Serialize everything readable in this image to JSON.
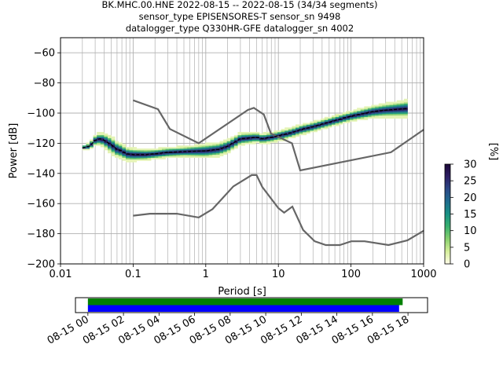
{
  "title_lines": [
    "BK.MHC.00.HNE   2022-08-15 -- 2022-08-15  (34/34 segments)",
    "sensor_type EPISENSORES-T sensor_sn 9498",
    "datalogger_type Q330HR-GFE datalogger_sn 4002"
  ],
  "chart_data": [
    {
      "type": "heatmap",
      "xlabel": "Period [s]",
      "ylabel": "Power [dB]",
      "xscale": "log",
      "xlim": [
        0.01,
        1000
      ],
      "ylim": [
        -200,
        -50
      ],
      "x_ticks": [
        {
          "v": 0.01,
          "label": "0.01"
        },
        {
          "v": 0.1,
          "label": "0.1"
        },
        {
          "v": 1,
          "label": "1"
        },
        {
          "v": 10,
          "label": "10"
        },
        {
          "v": 100,
          "label": "100"
        },
        {
          "v": 1000,
          "label": "1000"
        }
      ],
      "y_ticks": [
        {
          "v": -60,
          "label": "−60"
        },
        {
          "v": -80,
          "label": "−80"
        },
        {
          "v": -100,
          "label": "−100"
        },
        {
          "v": -120,
          "label": "−120"
        },
        {
          "v": -140,
          "label": "−140"
        },
        {
          "v": -160,
          "label": "−160"
        },
        {
          "v": -180,
          "label": "−180"
        },
        {
          "v": -200,
          "label": "−200"
        }
      ],
      "grid": true,
      "colorbar": {
        "label": "[%]",
        "range": [
          0,
          30
        ],
        "ticks": [
          {
            "v": 0,
            "label": "0"
          },
          {
            "v": 5,
            "label": "5"
          },
          {
            "v": 10,
            "label": "10"
          },
          {
            "v": 15,
            "label": "15"
          },
          {
            "v": 20,
            "label": "20"
          },
          {
            "v": 25,
            "label": "25"
          },
          {
            "v": 30,
            "label": "30"
          }
        ],
        "colors": [
          "#fffce8",
          "#d6ef9a",
          "#88d06e",
          "#38b06e",
          "#189184",
          "#1f6c8e",
          "#2b4886",
          "#2d1e64",
          "#1b0838"
        ]
      },
      "psd_median": [
        [
          0.02,
          -123
        ],
        [
          0.025,
          -122
        ],
        [
          0.03,
          -118
        ],
        [
          0.035,
          -117
        ],
        [
          0.04,
          -118
        ],
        [
          0.05,
          -121
        ],
        [
          0.06,
          -124
        ],
        [
          0.07,
          -125
        ],
        [
          0.08,
          -127
        ],
        [
          0.1,
          -127.5
        ],
        [
          0.15,
          -127.5
        ],
        [
          0.2,
          -127
        ],
        [
          0.3,
          -126
        ],
        [
          0.5,
          -125.5
        ],
        [
          1,
          -125
        ],
        [
          1.5,
          -124
        ],
        [
          2,
          -122
        ],
        [
          3,
          -117
        ],
        [
          4,
          -116.5
        ],
        [
          5,
          -116
        ],
        [
          6,
          -117
        ],
        [
          8,
          -116
        ],
        [
          10,
          -115
        ],
        [
          15,
          -113
        ],
        [
          20,
          -111
        ],
        [
          30,
          -109
        ],
        [
          50,
          -106
        ],
        [
          100,
          -102
        ],
        [
          200,
          -99
        ],
        [
          300,
          -98
        ],
        [
          600,
          -97
        ]
      ],
      "psd_spread": [
        [
          0.02,
          1
        ],
        [
          0.03,
          3
        ],
        [
          0.05,
          5
        ],
        [
          0.08,
          4
        ],
        [
          0.2,
          3
        ],
        [
          0.5,
          3
        ],
        [
          1,
          4
        ],
        [
          2,
          4
        ],
        [
          5,
          3
        ],
        [
          10,
          3
        ],
        [
          30,
          3
        ],
        [
          100,
          3
        ],
        [
          300,
          4
        ],
        [
          600,
          5
        ]
      ],
      "nhnm": [
        [
          0.1,
          -91.5
        ],
        [
          0.22,
          -97.4
        ],
        [
          0.32,
          -110.5
        ],
        [
          0.8,
          -120
        ],
        [
          3.8,
          -97.9
        ],
        [
          4.6,
          -96.5
        ],
        [
          6.3,
          -101
        ],
        [
          7.9,
          -113.5
        ],
        [
          15.4,
          -120
        ],
        [
          20,
          -138
        ],
        [
          354.8,
          -126
        ],
        [
          1000,
          -111
        ]
      ],
      "nlnm": [
        [
          0.1,
          -168
        ],
        [
          0.17,
          -166.7
        ],
        [
          0.4,
          -166.7
        ],
        [
          0.8,
          -169.2
        ],
        [
          1.24,
          -163.7
        ],
        [
          2.4,
          -148.6
        ],
        [
          4.3,
          -141.1
        ],
        [
          5,
          -141.1
        ],
        [
          6,
          -149
        ],
        [
          10,
          -163
        ],
        [
          12,
          -166
        ],
        [
          15.6,
          -162
        ],
        [
          21.9,
          -177.5
        ],
        [
          31.6,
          -185
        ],
        [
          45,
          -187.5
        ],
        [
          70,
          -187.5
        ],
        [
          101,
          -185
        ],
        [
          154,
          -185
        ],
        [
          328,
          -187.5
        ],
        [
          600,
          -184.4
        ],
        [
          1000,
          -178
        ]
      ],
      "bands": [
        -117,
        -122
      ]
    },
    {
      "type": "timeline",
      "xlim": [
        -0.7,
        19.1
      ],
      "x_ticks": [
        {
          "v": 0,
          "label": "08-15 00"
        },
        {
          "v": 2,
          "label": "08-15 02"
        },
        {
          "v": 4,
          "label": "08-15 04"
        },
        {
          "v": 6,
          "label": "08-15 06"
        },
        {
          "v": 8,
          "label": "08-15 08"
        },
        {
          "v": 10,
          "label": "08-15 10"
        },
        {
          "v": 12,
          "label": "08-15 12"
        },
        {
          "v": 14,
          "label": "08-15 14"
        },
        {
          "v": 16,
          "label": "08-15 16"
        },
        {
          "v": 18,
          "label": "08-15 18"
        }
      ],
      "bars": [
        {
          "start": 0,
          "end": 17.7,
          "color": "#008000"
        },
        {
          "start": 0,
          "end": 17.5,
          "color": "#0000ff"
        }
      ]
    }
  ]
}
